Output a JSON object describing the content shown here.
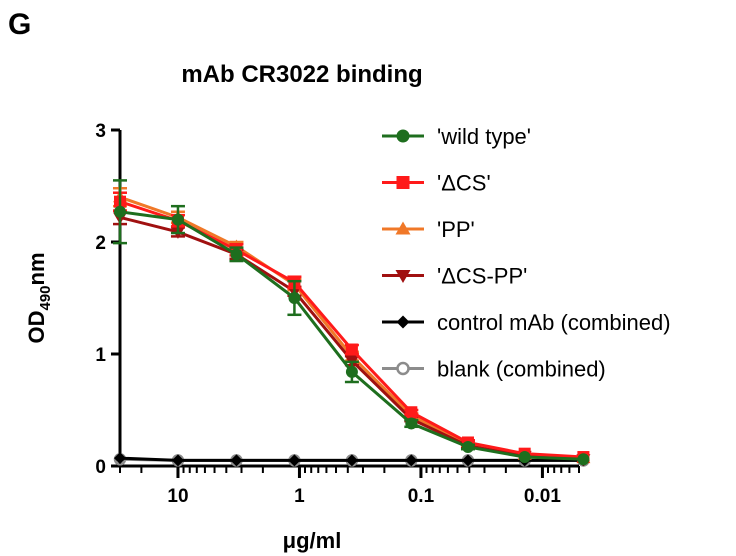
{
  "panel_label": "G",
  "chart_data": {
    "type": "line",
    "title": "mAb CR3022 binding",
    "xlabel": "μg/ml",
    "ylabel": {
      "base": "OD",
      "subscript": "490",
      "suffix": "nm"
    },
    "x_scale": "log",
    "x_reversed": true,
    "x_ticks": [
      {
        "value": 10,
        "label": "10"
      },
      {
        "value": 1,
        "label": "1"
      },
      {
        "value": 0.1,
        "label": "0.1"
      },
      {
        "value": 0.01,
        "label": "0.01"
      }
    ],
    "xlim": [
      30,
      0.005
    ],
    "y_ticks": [
      {
        "value": 0,
        "label": "0"
      },
      {
        "value": 1,
        "label": "1"
      },
      {
        "value": 2,
        "label": "2"
      },
      {
        "value": 3,
        "label": "3"
      }
    ],
    "ylim": [
      0,
      3
    ],
    "x": [
      30,
      10,
      3.3,
      1.1,
      0.37,
      0.12,
      0.041,
      0.014,
      0.0046
    ],
    "series": [
      {
        "name": "'wild type'",
        "color": "#1e6e1e",
        "marker": "circle",
        "values": [
          2.27,
          2.2,
          1.89,
          1.5,
          0.84,
          0.38,
          0.17,
          0.08,
          0.06
        ],
        "errors": [
          0.28,
          0.12,
          0.06,
          0.15,
          0.09,
          0.03,
          0.02,
          0.01,
          0.01
        ]
      },
      {
        "name": "'ΔCS'",
        "color": "#ff1a1a",
        "marker": "square",
        "values": [
          2.36,
          2.19,
          1.93,
          1.64,
          1.04,
          0.48,
          0.21,
          0.11,
          0.08
        ],
        "errors": [
          0.08,
          0.05,
          0.05,
          0.05,
          0.04,
          0.02,
          0.02,
          0.01,
          0.01
        ]
      },
      {
        "name": "'PP'",
        "color": "#f07828",
        "marker": "triangle-up",
        "values": [
          2.4,
          2.22,
          1.96,
          1.62,
          0.98,
          0.45,
          0.2,
          0.1,
          0.07
        ],
        "errors": [
          0.08,
          0.05,
          0.04,
          0.05,
          0.04,
          0.02,
          0.02,
          0.01,
          0.01
        ]
      },
      {
        "name": "'ΔCS-PP'",
        "color": "#a01010",
        "marker": "triangle-down",
        "values": [
          2.22,
          2.09,
          1.89,
          1.56,
          0.94,
          0.42,
          0.18,
          0.09,
          0.06
        ],
        "errors": [
          0.06,
          0.04,
          0.04,
          0.04,
          0.04,
          0.02,
          0.02,
          0.01,
          0.01
        ]
      },
      {
        "name": "control mAb (combined)",
        "color": "#000000",
        "marker": "diamond",
        "values": [
          0.07,
          0.05,
          0.05,
          0.05,
          0.05,
          0.05,
          0.05,
          0.05,
          0.05
        ],
        "errors": [
          0,
          0,
          0,
          0,
          0,
          0,
          0,
          0,
          0
        ]
      },
      {
        "name": "blank (combined)",
        "color": "#8c8c8c",
        "marker": "circle-open",
        "values": [
          0.06,
          0.05,
          0.05,
          0.05,
          0.05,
          0.05,
          0.05,
          0.05,
          0.05
        ],
        "errors": [
          0,
          0,
          0,
          0,
          0,
          0,
          0,
          0,
          0
        ]
      }
    ],
    "legend_position": "right"
  }
}
